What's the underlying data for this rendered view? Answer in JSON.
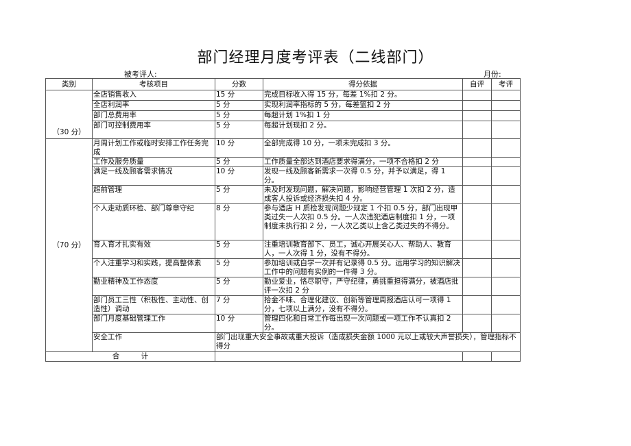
{
  "title": "部门经理月度考评表（二线部门）",
  "evaluatee_label": "被考评人:",
  "month_label": "月份:",
  "headers": [
    "类别",
    "考核项目",
    "分数",
    "得分依据",
    "自评",
    "考评"
  ],
  "group1": {
    "label": "（30 分）",
    "rows": [
      {
        "item": "全店销售收入",
        "score": "15 分",
        "basis": "完成目标收入得 15 分，每差 1%扣 2 分。"
      },
      {
        "item": "全店利润率",
        "score": "5 分",
        "basis": "实现利润率指标的 5 分，每差篮扣 2 分"
      },
      {
        "item": "部门总费用率",
        "score": "5 分",
        "basis": "每超计划 1%扣 1 分"
      },
      {
        "item": "部门可控制费用率",
        "score": "5 分",
        "basis": "每超计划现扣 2 分。"
      }
    ]
  },
  "group2": {
    "label": "（70 分）",
    "rows": [
      {
        "item": "月周计划工作或临时安排工作任务完成",
        "score": "10 分",
        "basis": "全部完成得 10 分，一项未完成扣 3 分。"
      },
      {
        "item": "工作及服务质量",
        "score": "5 分",
        "basis": "工作质量全部达到酒店要求得满分，一项不合格扣 2 分"
      },
      {
        "item": "满足一线及顾客需求情况",
        "score": "10 分",
        "basis": "发现一线及顾客新需求一次得 0.5 分，并予以满足，得 1 分。"
      },
      {
        "item": "超前管理",
        "score": "5 分",
        "basis": "未及时发现问题，解决问题，影响经营管理 1 次扣 2 分，造成客人投诉或经济损失扣 4 分。"
      },
      {
        "item": "个人走动质环检、部门尊章守纪",
        "score": "8 分",
        "basis": "参与酒店 H 质检发现问题少规定 1 个扣 0.5 分，部门出现甲类过失一人次扣 0.5 分。一人次违犯酒店制度扣 1 分，一项制度未执行扣 2 分，一人次乙类以上含乙类过失的不得分。"
      },
      {
        "item": "育人育才扎实有效",
        "score": "5 分",
        "basis": "注重培训教育部下、员工，诚心开展关心人、帮助人、教育人，一人次得 1 分，没有不得分。"
      },
      {
        "item": "个人注重学习和实践，提高整体素",
        "score": "5 分",
        "basis": "参加培训或自学一次并有记录得 0.5 分。运用学习的知识解决工作中的问题有实例的一件得 3 分。"
      },
      {
        "item": "勤业精神及工作态度",
        "score": "5 分",
        "basis": "勤业爱业，恪尽职守，严守纪律，勇挑重担得满分，被酒店批评一次扣 2 分"
      },
      {
        "item": "部门员工三性（积极性、主动性、创造性）调动",
        "score": "7 分",
        "basis": "拾金不味、合理化建议、创新等管理周报酒店认可一项得 1 分，七项以上满分，没有不得分。"
      },
      {
        "item": "部门月度基础管理工作",
        "score": "10 分",
        "basis": "管理四化和日常工作每出现一次问题或一项工作不认真扣 2 分。"
      }
    ],
    "safety": {
      "item": "安全工作",
      "basis": "部门出现重大安全事故或重大投诉（造成损失金额 1000 元以上或较大声誉损失），管理指标不得分"
    }
  },
  "total_label": "合　　　计"
}
